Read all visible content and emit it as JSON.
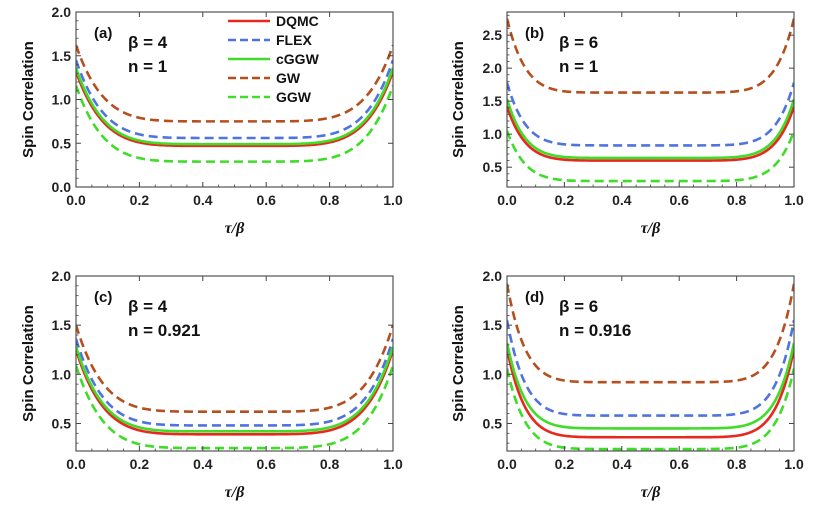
{
  "chart_data": [
    {
      "type": "line",
      "panel": "(a)",
      "annotations": [
        "β = 4",
        "n = 1"
      ],
      "xlabel": "τ/β",
      "ylabel": "Spin Correlation",
      "xlim": [
        0,
        1
      ],
      "ylim": [
        0,
        2
      ],
      "xticks": [
        "0.0",
        "0.2",
        "0.4",
        "0.6",
        "0.8",
        "1.0"
      ],
      "yticks": [
        "0.0",
        "0.5",
        "1.0",
        "1.5",
        "2.0"
      ],
      "legend": {
        "placement": "top-center",
        "entries": [
          {
            "label": "DQMC",
            "color": "#e8281e",
            "dash": "solid"
          },
          {
            "label": "FLEX",
            "color": "#4f74e0",
            "dash": "dashed"
          },
          {
            "label": "cGGW",
            "color": "#3fdc28",
            "dash": "solid"
          },
          {
            "label": "GW",
            "color": "#b5501e",
            "dash": "dashed"
          },
          {
            "label": "GGW",
            "color": "#3fdc28",
            "dash": "dashed"
          }
        ]
      },
      "series": [
        {
          "name": "DQMC",
          "color": "#e8281e",
          "dash": "solid",
          "edge": 1.32,
          "mid": 0.47,
          "p": 6
        },
        {
          "name": "FLEX",
          "color": "#4f74e0",
          "dash": "dashed",
          "edge": 1.45,
          "mid": 0.56,
          "p": 6
        },
        {
          "name": "cGGW",
          "color": "#3fdc28",
          "dash": "solid",
          "edge": 1.36,
          "mid": 0.49,
          "p": 6
        },
        {
          "name": "GW",
          "color": "#b5501e",
          "dash": "dashed",
          "edge": 1.62,
          "mid": 0.75,
          "p": 6
        },
        {
          "name": "GGW",
          "color": "#3fdc28",
          "dash": "dashed",
          "edge": 1.16,
          "mid": 0.29,
          "p": 6
        }
      ]
    },
    {
      "type": "line",
      "panel": "(b)",
      "annotations": [
        "β = 6",
        "n = 1"
      ],
      "xlabel": "τ/β",
      "ylabel": "Spin Correlation",
      "xlim": [
        0,
        1
      ],
      "ylim": [
        0.2,
        2.85
      ],
      "xticks": [
        "0.0",
        "0.2",
        "0.4",
        "0.6",
        "0.8",
        "1.0"
      ],
      "yticks": [
        "0.5",
        "1.0",
        "1.5",
        "2.0",
        "2.5"
      ],
      "series": [
        {
          "name": "DQMC",
          "color": "#e8281e",
          "dash": "solid",
          "edge": 1.42,
          "mid": 0.6,
          "p": 8
        },
        {
          "name": "FLEX",
          "color": "#4f74e0",
          "dash": "dashed",
          "edge": 1.78,
          "mid": 0.83,
          "p": 8
        },
        {
          "name": "cGGW",
          "color": "#3fdc28",
          "dash": "solid",
          "edge": 1.53,
          "mid": 0.64,
          "p": 8
        },
        {
          "name": "GW",
          "color": "#b5501e",
          "dash": "dashed",
          "edge": 2.75,
          "mid": 1.63,
          "p": 8
        },
        {
          "name": "GGW",
          "color": "#3fdc28",
          "dash": "dashed",
          "edge": 1.05,
          "mid": 0.29,
          "p": 8
        }
      ]
    },
    {
      "type": "line",
      "panel": "(c)",
      "annotations": [
        "β = 4",
        "n = 0.921"
      ],
      "xlabel": "τ/β",
      "ylabel": "Spin Correlation",
      "xlim": [
        0,
        1
      ],
      "ylim": [
        0.22,
        2.0
      ],
      "xticks": [
        "0.0",
        "0.2",
        "0.4",
        "0.6",
        "0.8",
        "1.0"
      ],
      "yticks": [
        "0.5",
        "1.0",
        "1.5",
        "2.0"
      ],
      "series": [
        {
          "name": "DQMC",
          "color": "#e8281e",
          "dash": "solid",
          "edge": 1.25,
          "mid": 0.39,
          "p": 6
        },
        {
          "name": "FLEX",
          "color": "#4f74e0",
          "dash": "dashed",
          "edge": 1.36,
          "mid": 0.48,
          "p": 6
        },
        {
          "name": "cGGW",
          "color": "#3fdc28",
          "dash": "solid",
          "edge": 1.28,
          "mid": 0.42,
          "p": 6
        },
        {
          "name": "GW",
          "color": "#b5501e",
          "dash": "dashed",
          "edge": 1.5,
          "mid": 0.62,
          "p": 6
        },
        {
          "name": "GGW",
          "color": "#3fdc28",
          "dash": "dashed",
          "edge": 1.09,
          "mid": 0.25,
          "p": 6
        }
      ]
    },
    {
      "type": "line",
      "panel": "(d)",
      "annotations": [
        "β = 6",
        "n = 0.916"
      ],
      "xlabel": "τ/β",
      "ylabel": "Spin Correlation",
      "xlim": [
        0,
        1
      ],
      "ylim": [
        0.22,
        2.0
      ],
      "xticks": [
        "0.0",
        "0.2",
        "0.4",
        "0.6",
        "0.8",
        "1.0"
      ],
      "yticks": [
        "0.5",
        "1.0",
        "1.5",
        "2.0"
      ],
      "series": [
        {
          "name": "DQMC",
          "color": "#e8281e",
          "dash": "solid",
          "edge": 1.26,
          "mid": 0.36,
          "p": 8
        },
        {
          "name": "FLEX",
          "color": "#4f74e0",
          "dash": "dashed",
          "edge": 1.55,
          "mid": 0.58,
          "p": 8
        },
        {
          "name": "cGGW",
          "color": "#3fdc28",
          "dash": "solid",
          "edge": 1.32,
          "mid": 0.45,
          "p": 8
        },
        {
          "name": "GW",
          "color": "#b5501e",
          "dash": "dashed",
          "edge": 1.92,
          "mid": 0.92,
          "p": 8
        },
        {
          "name": "GGW",
          "color": "#3fdc28",
          "dash": "dashed",
          "edge": 1.06,
          "mid": 0.24,
          "p": 8
        }
      ]
    }
  ]
}
